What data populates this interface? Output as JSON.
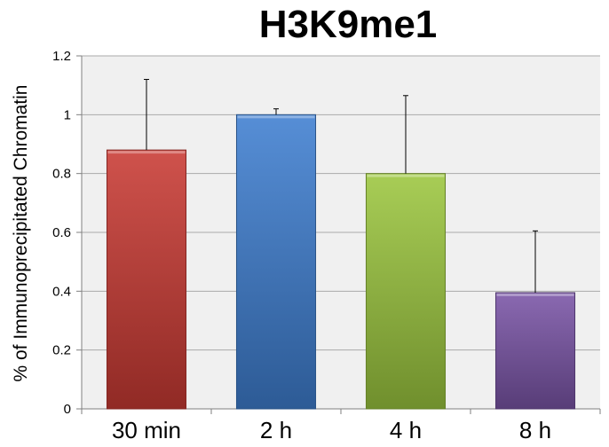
{
  "chart_data": {
    "type": "bar",
    "title": "H3K9me1",
    "xlabel": "",
    "ylabel": "% of Immunoprecipitated Chromatin",
    "categories": [
      "30 min",
      "2 h",
      "4 h",
      "8 h"
    ],
    "values": [
      0.88,
      1.0,
      0.8,
      0.395
    ],
    "error_upper": [
      0.24,
      0.02,
      0.265,
      0.21
    ],
    "ylim": [
      0,
      1.2
    ],
    "yticks": [
      "0",
      "0.2",
      "0.4",
      "0.6",
      "0.8",
      "1",
      "1.2"
    ],
    "grid": true,
    "legend": "none",
    "colors": {
      "bars": [
        "#c93a34",
        "#3f7fd0",
        "#9cc63f",
        "#7a55a6"
      ],
      "plot_background": "#f0f0f0",
      "gridline": "#aaaaaa",
      "axis": "#7f7f7f",
      "error_bar": "#000000"
    }
  }
}
